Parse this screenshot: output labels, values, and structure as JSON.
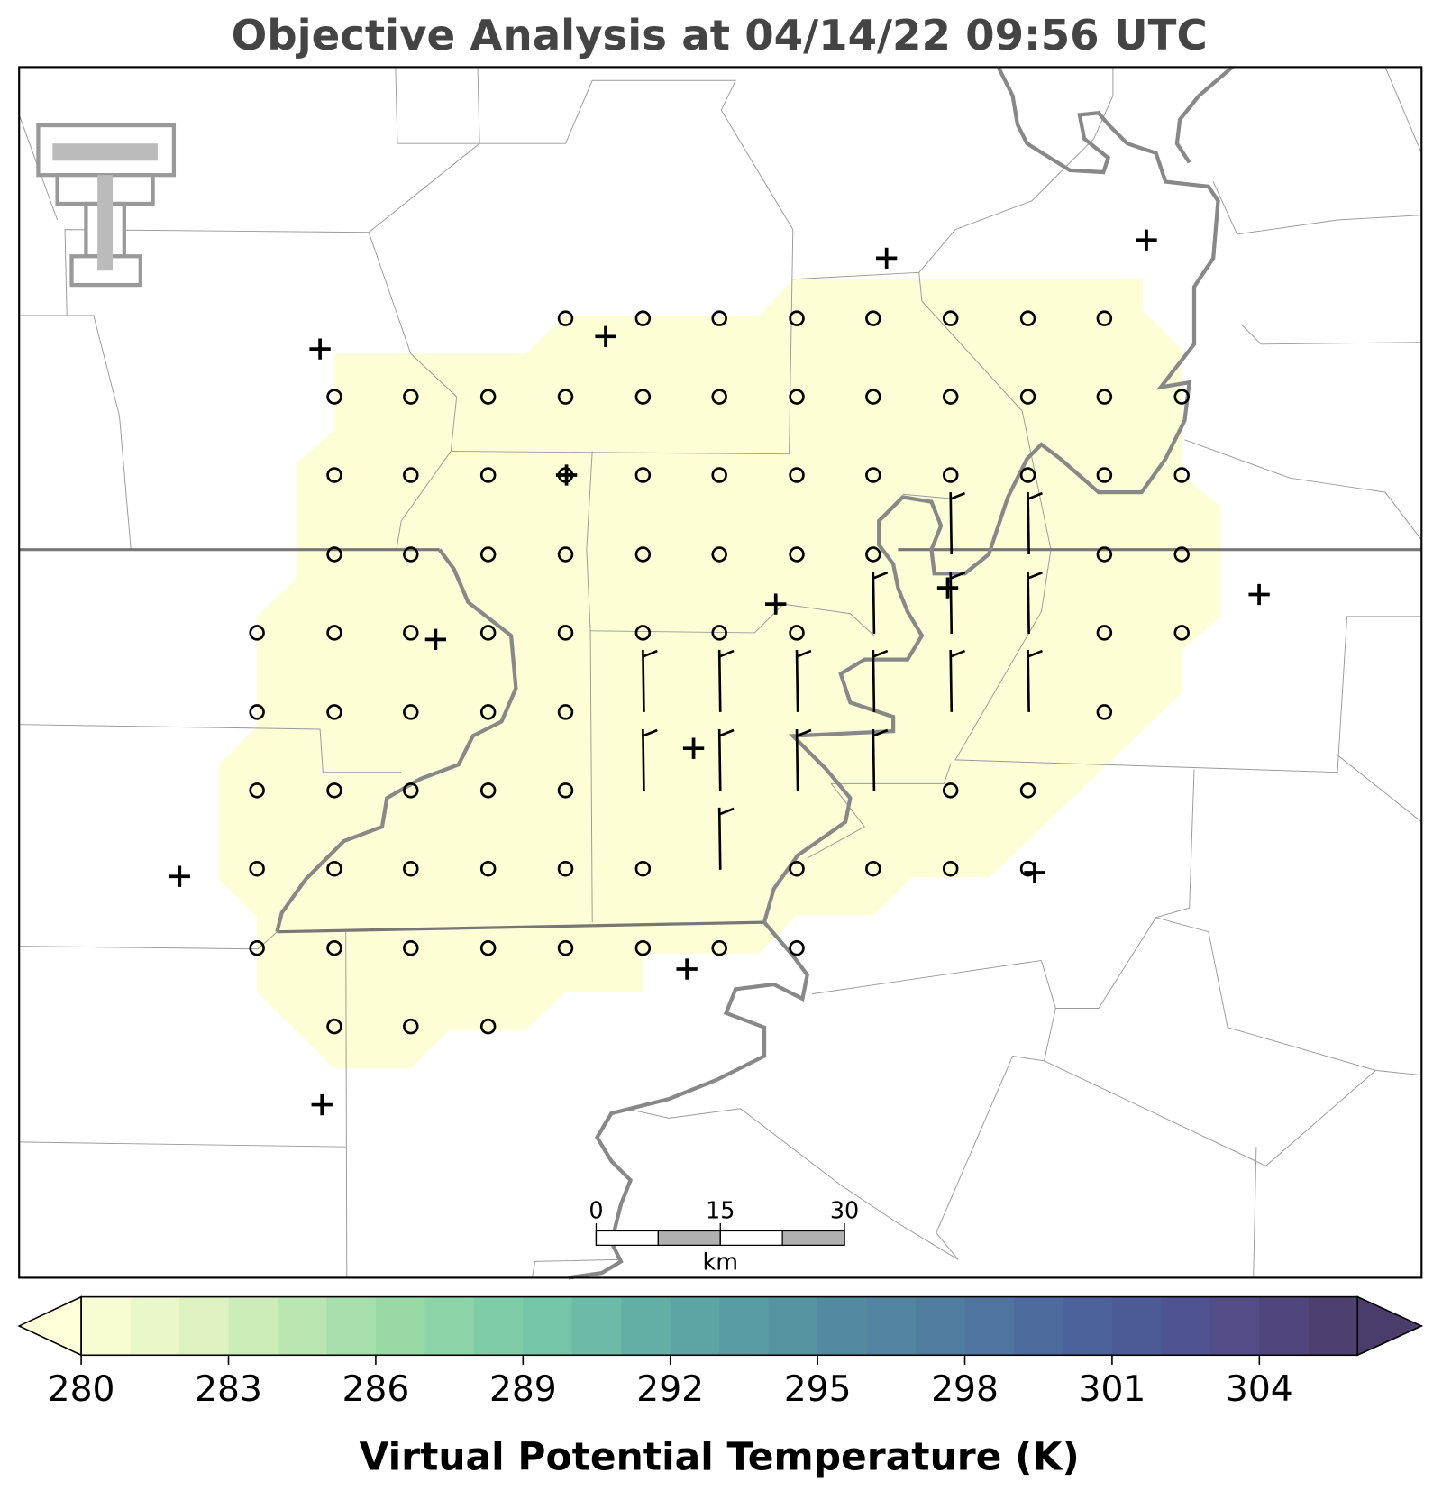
{
  "title": "Objective Analysis at 04/14/22 09:56 UTC",
  "colorbar": {
    "label": "Virtual Potential Temperature (K)",
    "lim": [
      280,
      306
    ],
    "ticks": [
      280,
      283,
      286,
      289,
      292,
      295,
      298,
      301,
      304
    ],
    "step": 1,
    "extend": "both",
    "colormap": [
      [
        280,
        "#fefed8"
      ],
      [
        283,
        "#d6f0bb"
      ],
      [
        286,
        "#9edca6"
      ],
      [
        289,
        "#79caa8"
      ],
      [
        292,
        "#5fa9a6"
      ],
      [
        295,
        "#558e9f"
      ],
      [
        298,
        "#4f78a0"
      ],
      [
        301,
        "#4b5e9a"
      ],
      [
        304,
        "#534883"
      ],
      [
        306,
        "#4b3d6b"
      ]
    ]
  },
  "scale_bar": {
    "lim": [
      0,
      30
    ],
    "ticks": [
      0,
      15,
      30
    ],
    "unit": "km"
  }
}
